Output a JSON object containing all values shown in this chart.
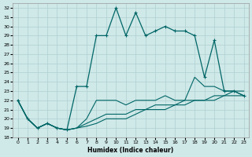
{
  "xlabel": "Humidex (Indice chaleur)",
  "background_color": "#cfe8e8",
  "grid_color": "#b0d0d0",
  "line_color": "#006666",
  "xlim": [
    -0.5,
    23.5
  ],
  "ylim": [
    18,
    32.5
  ],
  "yticks": [
    18,
    19,
    20,
    21,
    22,
    23,
    24,
    25,
    26,
    27,
    28,
    29,
    30,
    31,
    32
  ],
  "xticks": [
    0,
    1,
    2,
    3,
    4,
    5,
    6,
    7,
    8,
    9,
    10,
    11,
    12,
    13,
    14,
    15,
    16,
    17,
    18,
    19,
    20,
    21,
    22,
    23
  ],
  "line_main_x": [
    0,
    1,
    2,
    3,
    4,
    5,
    6,
    7,
    8,
    9,
    10,
    11,
    12,
    13,
    14,
    15,
    16,
    17,
    18,
    19,
    20,
    21,
    22,
    23
  ],
  "line_main_y": [
    22,
    20,
    19,
    19.5,
    19,
    18.8,
    23.5,
    23.5,
    29,
    29,
    32,
    29,
    31.5,
    29,
    29.5,
    30,
    29.5,
    29.5,
    29,
    24.5,
    28.5,
    23,
    23,
    22.5
  ],
  "line2_x": [
    0,
    1,
    2,
    3,
    4,
    5,
    6,
    7,
    8,
    9,
    10,
    11,
    12,
    13,
    14,
    15,
    16,
    17,
    18,
    19,
    20,
    21,
    22,
    23
  ],
  "line2_y": [
    22,
    20,
    19,
    19.5,
    19,
    18.8,
    19,
    20,
    22,
    22,
    22,
    21.5,
    22,
    22,
    22,
    22.5,
    22,
    22,
    24.5,
    23.5,
    23.5,
    23,
    23,
    22.5
  ],
  "line3_x": [
    0,
    1,
    2,
    3,
    4,
    5,
    6,
    7,
    8,
    9,
    10,
    11,
    12,
    13,
    14,
    15,
    16,
    17,
    18,
    19,
    20,
    21,
    22,
    23
  ],
  "line3_y": [
    22,
    20,
    19,
    19.5,
    19,
    18.8,
    19,
    19.5,
    20,
    20.5,
    20.5,
    20.5,
    21,
    21,
    21.5,
    21.5,
    21.5,
    22,
    22,
    22,
    22.5,
    22.5,
    23,
    23
  ],
  "line4_x": [
    0,
    1,
    2,
    3,
    4,
    5,
    6,
    7,
    8,
    9,
    10,
    11,
    12,
    13,
    14,
    15,
    16,
    17,
    18,
    19,
    20,
    21,
    22,
    23
  ],
  "line4_y": [
    22,
    20,
    19,
    19.5,
    19,
    18.8,
    19,
    19.2,
    19.5,
    20,
    20,
    20,
    20.5,
    21,
    21,
    21,
    21.5,
    21.5,
    22,
    22,
    22,
    22.5,
    22.5,
    22.5
  ]
}
